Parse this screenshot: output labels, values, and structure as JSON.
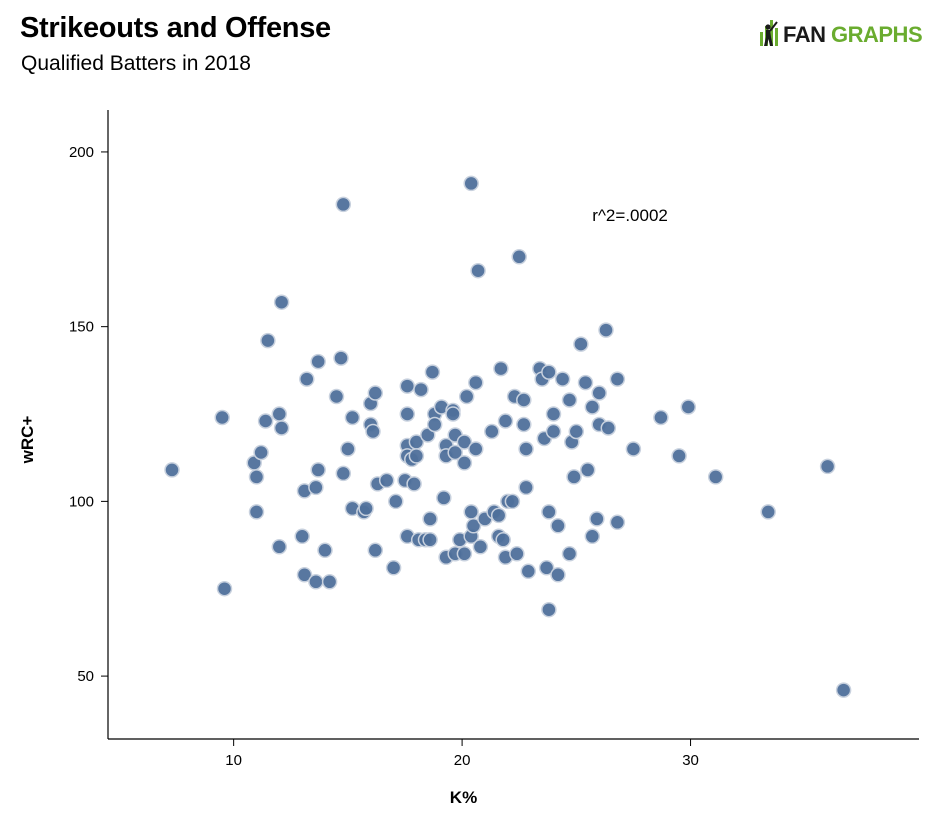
{
  "header": {
    "title": "Strikeouts and Offense",
    "subtitle": "Qualified Batters in 2018",
    "logo_text_left": "FAN",
    "logo_text_right": "GRAPHS"
  },
  "colors": {
    "point_fill": "#4f709b",
    "point_stroke": "#c8d1de",
    "axis": "#000000",
    "logo_dark": "#1a1a1a",
    "logo_green": "#6aac2f"
  },
  "icons": {
    "logo": "fangraphs-batter-icon"
  },
  "chart_data": {
    "type": "scatter",
    "xlabel": "K%",
    "ylabel": "wRC+",
    "xlim": [
      4.5,
      40
    ],
    "ylim": [
      32,
      212
    ],
    "x_ticks": [
      10,
      20,
      30
    ],
    "y_ticks": [
      50,
      100,
      150,
      200
    ],
    "grid": false,
    "annotation": {
      "text": "r^2=.0002",
      "x": 25.7,
      "y": 182
    },
    "points": [
      [
        7.3,
        109
      ],
      [
        9.5,
        124
      ],
      [
        9.6,
        75
      ],
      [
        10.9,
        111
      ],
      [
        11.0,
        107
      ],
      [
        11.0,
        97
      ],
      [
        11.2,
        114
      ],
      [
        11.4,
        123
      ],
      [
        11.5,
        146
      ],
      [
        12.0,
        125
      ],
      [
        12.0,
        87
      ],
      [
        12.1,
        121
      ],
      [
        12.1,
        157
      ],
      [
        13.0,
        90
      ],
      [
        13.1,
        79
      ],
      [
        13.1,
        103
      ],
      [
        13.2,
        135
      ],
      [
        13.6,
        104
      ],
      [
        13.6,
        77
      ],
      [
        13.7,
        109
      ],
      [
        13.7,
        140
      ],
      [
        14.0,
        86
      ],
      [
        14.2,
        77
      ],
      [
        14.5,
        130
      ],
      [
        14.7,
        141
      ],
      [
        14.8,
        185
      ],
      [
        14.8,
        108
      ],
      [
        15.0,
        115
      ],
      [
        15.2,
        124
      ],
      [
        15.2,
        98
      ],
      [
        15.7,
        97
      ],
      [
        15.8,
        98
      ],
      [
        16.0,
        122
      ],
      [
        16.0,
        128
      ],
      [
        16.1,
        120
      ],
      [
        16.2,
        131
      ],
      [
        16.2,
        86
      ],
      [
        16.3,
        105
      ],
      [
        16.7,
        106
      ],
      [
        17.0,
        81
      ],
      [
        17.1,
        100
      ],
      [
        17.5,
        106
      ],
      [
        17.6,
        133
      ],
      [
        17.6,
        125
      ],
      [
        17.6,
        116
      ],
      [
        17.6,
        113
      ],
      [
        17.6,
        90
      ],
      [
        17.8,
        112
      ],
      [
        17.9,
        105
      ],
      [
        18.0,
        117
      ],
      [
        18.0,
        113
      ],
      [
        18.1,
        89
      ],
      [
        18.2,
        132
      ],
      [
        18.4,
        89
      ],
      [
        18.5,
        119
      ],
      [
        18.6,
        95
      ],
      [
        18.6,
        89
      ],
      [
        18.7,
        137
      ],
      [
        18.8,
        125
      ],
      [
        18.8,
        122
      ],
      [
        19.1,
        127
      ],
      [
        19.2,
        101
      ],
      [
        19.3,
        116
      ],
      [
        19.3,
        113
      ],
      [
        19.3,
        84
      ],
      [
        19.6,
        126
      ],
      [
        19.6,
        125
      ],
      [
        19.7,
        85
      ],
      [
        19.7,
        119
      ],
      [
        19.7,
        114
      ],
      [
        19.9,
        89
      ],
      [
        20.1,
        117
      ],
      [
        20.1,
        111
      ],
      [
        20.1,
        85
      ],
      [
        20.2,
        130
      ],
      [
        20.4,
        191
      ],
      [
        20.4,
        97
      ],
      [
        20.4,
        90
      ],
      [
        20.5,
        93
      ],
      [
        20.6,
        134
      ],
      [
        20.6,
        115
      ],
      [
        20.7,
        166
      ],
      [
        20.8,
        87
      ],
      [
        21.0,
        95
      ],
      [
        21.3,
        120
      ],
      [
        21.4,
        97
      ],
      [
        21.6,
        90
      ],
      [
        21.6,
        96
      ],
      [
        21.7,
        138
      ],
      [
        21.8,
        89
      ],
      [
        21.9,
        123
      ],
      [
        21.9,
        84
      ],
      [
        22.0,
        100
      ],
      [
        22.2,
        100
      ],
      [
        22.3,
        130
      ],
      [
        22.4,
        85
      ],
      [
        22.5,
        170
      ],
      [
        22.7,
        129
      ],
      [
        22.7,
        122
      ],
      [
        22.8,
        115
      ],
      [
        22.8,
        104
      ],
      [
        22.9,
        80
      ],
      [
        23.4,
        138
      ],
      [
        23.5,
        135
      ],
      [
        23.6,
        118
      ],
      [
        23.7,
        81
      ],
      [
        23.8,
        137
      ],
      [
        23.8,
        97
      ],
      [
        23.8,
        69
      ],
      [
        24.0,
        120
      ],
      [
        24.0,
        125
      ],
      [
        24.2,
        93
      ],
      [
        24.2,
        79
      ],
      [
        24.4,
        135
      ],
      [
        24.7,
        129
      ],
      [
        24.7,
        85
      ],
      [
        24.8,
        117
      ],
      [
        24.9,
        107
      ],
      [
        25.0,
        120
      ],
      [
        25.2,
        145
      ],
      [
        25.4,
        134
      ],
      [
        25.5,
        109
      ],
      [
        25.7,
        127
      ],
      [
        25.7,
        90
      ],
      [
        25.9,
        95
      ],
      [
        26.0,
        131
      ],
      [
        26.0,
        122
      ],
      [
        26.3,
        149
      ],
      [
        26.4,
        121
      ],
      [
        26.8,
        94
      ],
      [
        26.8,
        135
      ],
      [
        27.5,
        115
      ],
      [
        28.7,
        124
      ],
      [
        29.5,
        113
      ],
      [
        29.9,
        127
      ],
      [
        31.1,
        107
      ],
      [
        33.4,
        97
      ],
      [
        36.0,
        110
      ],
      [
        36.7,
        46
      ]
    ]
  }
}
